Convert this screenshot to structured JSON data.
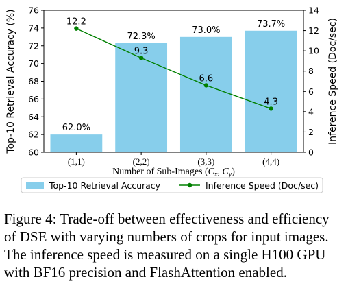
{
  "chart_data": {
    "type": "bar",
    "categories": [
      "(1,1)",
      "(2,2)",
      "(3,3)",
      "(4,4)"
    ],
    "xlabel": "Number of Sub-Images (C_x, C_y)",
    "xlabel_parts": {
      "prefix": "Number of Sub-Images (",
      "c1": "C",
      "s1": "x",
      "sep": ", ",
      "c2": "C",
      "s2": "y",
      "suffix": ")"
    },
    "series": [
      {
        "name": "Top-10 Retrieval Accuracy",
        "type": "bar",
        "axis": "left",
        "color": "#87ceeb",
        "values": [
          62.0,
          72.3,
          73.0,
          73.7
        ],
        "labels": [
          "62.0%",
          "72.3%",
          "73.0%",
          "73.7%"
        ]
      },
      {
        "name": "Inference Speed (Doc/sec)",
        "type": "line",
        "axis": "right",
        "color": "#008000",
        "values": [
          12.2,
          9.3,
          6.6,
          4.3
        ],
        "labels": [
          "12.2",
          "9.3",
          "6.6",
          "4.3"
        ]
      }
    ],
    "ylabel_left": "Top-10 Retrieval Accuracy (%)",
    "ylim_left": [
      60,
      76
    ],
    "yticks_left": [
      "60",
      "62",
      "64",
      "66",
      "68",
      "70",
      "72",
      "74",
      "76"
    ],
    "ylabel_right": "Inference Speed (Doc/sec)",
    "ylim_right": [
      0,
      14
    ],
    "yticks_right": [
      "0",
      "2",
      "4",
      "6",
      "8",
      "10",
      "12",
      "14"
    ],
    "grid": false,
    "legend_position": "bottom"
  },
  "caption_lines": [
    "Figure 4: Trade-off between effectiveness and efficiency",
    "of DSE with varying numbers of crops for input images.",
    "The inference speed is measured on a single H100 GPU",
    "with BF16 precision and FlashAttention enabled."
  ]
}
